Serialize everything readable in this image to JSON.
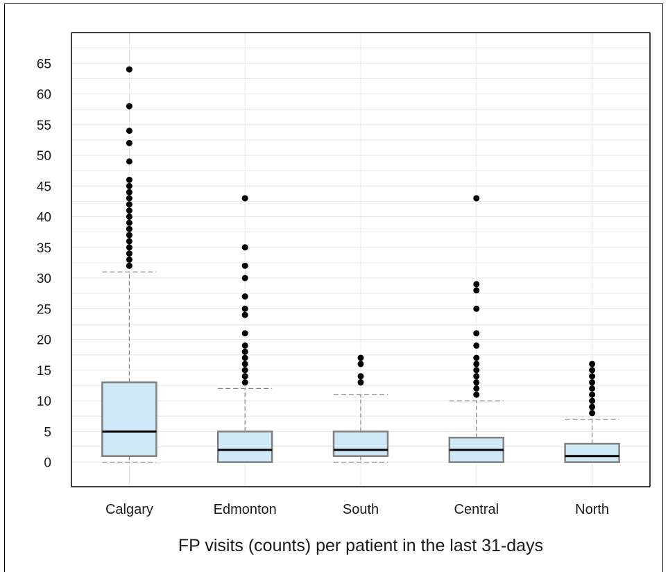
{
  "chart_data": {
    "type": "boxplot",
    "title": "",
    "xlabel": "FP visits (counts) per patient in the last 31-days",
    "ylabel": "",
    "ylim": [
      -4,
      70
    ],
    "yticks": [
      0,
      5,
      10,
      15,
      20,
      25,
      30,
      35,
      40,
      45,
      50,
      55,
      60,
      65
    ],
    "grid": true,
    "legend": "none",
    "colors": {
      "box_fill": "#cfe9f7",
      "box_stroke": "#808080",
      "median": "#000000",
      "whisker": "#808080",
      "outlier": "#000000",
      "grid": "#e6e6e6"
    },
    "categories": [
      "Calgary",
      "Edmonton",
      "South",
      "Central",
      "North"
    ],
    "boxes": [
      {
        "category": "Calgary",
        "min": 0,
        "q1": 1,
        "median": 5,
        "q3": 13,
        "max": 31,
        "outliers": [
          32,
          33,
          34,
          35,
          36,
          37,
          38,
          39,
          40,
          41,
          42,
          43,
          44,
          45,
          46,
          49,
          52,
          54,
          58,
          64
        ]
      },
      {
        "category": "Edmonton",
        "min": 0,
        "q1": 0,
        "median": 2,
        "q3": 5,
        "max": 12,
        "outliers": [
          13,
          14,
          15,
          16,
          17,
          18,
          19,
          21,
          24,
          25,
          27,
          30,
          32,
          35,
          43
        ]
      },
      {
        "category": "South",
        "min": 0,
        "q1": 1,
        "median": 2,
        "q3": 5,
        "max": 11,
        "outliers": [
          13,
          14,
          16,
          17
        ]
      },
      {
        "category": "Central",
        "min": 0,
        "q1": 0,
        "median": 2,
        "q3": 4,
        "max": 10,
        "outliers": [
          11,
          12,
          13,
          14,
          15,
          16,
          17,
          19,
          21,
          25,
          28,
          29,
          43
        ]
      },
      {
        "category": "North",
        "min": 0,
        "q1": 0,
        "median": 1,
        "q3": 3,
        "max": 7,
        "outliers": [
          8,
          9,
          10,
          11,
          12,
          13,
          14,
          15,
          16
        ]
      }
    ]
  }
}
